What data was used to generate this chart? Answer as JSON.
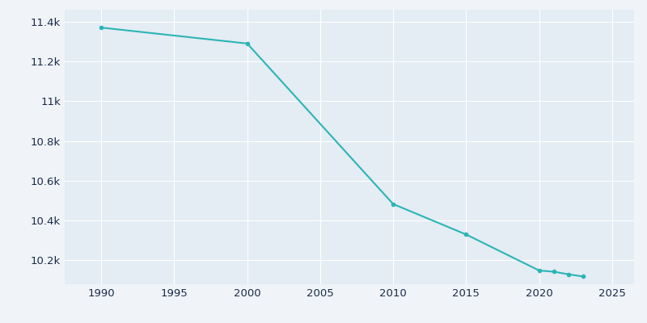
{
  "years": [
    1990,
    2000,
    2010,
    2015,
    2020,
    2021,
    2022,
    2023
  ],
  "population": [
    11370,
    11290,
    10483,
    10330,
    10149,
    10143,
    10130,
    10119
  ],
  "line_color": "#2ab5b5",
  "marker_color": "#2ab5b5",
  "plot_bg_color": "#e4ecf4",
  "fig_bg_color": "#f0f4f8",
  "grid_color": "#ffffff",
  "text_color": "#1a2a4a",
  "xlim": [
    1987.5,
    2026.5
  ],
  "ylim": [
    10080,
    11460
  ],
  "xticks": [
    1990,
    1995,
    2000,
    2005,
    2010,
    2015,
    2020,
    2025
  ],
  "yticks": [
    10200,
    10400,
    10600,
    10800,
    11000,
    11200,
    11400
  ],
  "ytick_labels": [
    "10.2k",
    "10.4k",
    "10.6k",
    "10.8k",
    "11k",
    "11.2k",
    "11.4k"
  ]
}
